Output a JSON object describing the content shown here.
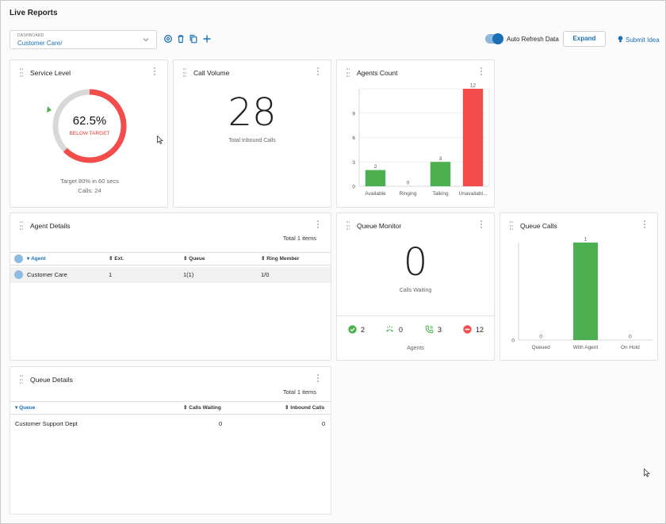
{
  "page": {
    "title": "Live Reports"
  },
  "toolbar": {
    "dashboard_label": "DASHBOARD",
    "dashboard_value": "Customer Care/",
    "icons": [
      "settings-icon",
      "trash-icon",
      "copy-icon",
      "plus-icon"
    ],
    "auto_refresh_label": "Auto Refresh Data",
    "auto_refresh_on": true,
    "expand_label": "Expand",
    "submit_idea_label": "Submit Idea"
  },
  "colors": {
    "accent": "#1a6fb5",
    "green": "#4caf50",
    "red": "#f44b4b",
    "gray": "#d8d8d8"
  },
  "service_level": {
    "title": "Service Level",
    "percent_text": "62.5%",
    "percent": 62.5,
    "status": "BELOW TARGET",
    "target_text": "Target 80% in 60 secs",
    "calls_text": "Calls: 24"
  },
  "call_volume": {
    "title": "Call Volume",
    "value": "28",
    "caption": "Total Inbound Calls"
  },
  "agents_count": {
    "title": "Agents Count",
    "chart_data": {
      "type": "bar",
      "categories": [
        "Available",
        "Ringing",
        "Talking",
        "Unavailabl..."
      ],
      "values": [
        2,
        0,
        3,
        12
      ],
      "colors": [
        "#4caf50",
        "#4caf50",
        "#4caf50",
        "#f44b4b"
      ],
      "yticks": [
        "0",
        "3",
        "6",
        "9"
      ],
      "ylim": [
        0,
        12
      ]
    }
  },
  "agent_details": {
    "title": "Agent Details",
    "total": "Total 1 items",
    "columns": [
      "Agent",
      "Ext.",
      "Queue",
      "Ring Member"
    ],
    "rows": [
      {
        "agent": "Customer Care",
        "ext": "1",
        "queue": "1(1)",
        "ring": "1/0"
      }
    ]
  },
  "queue_monitor": {
    "title": "Queue Monitor",
    "value": "0",
    "caption": "Calls Waiting",
    "stats": [
      {
        "icon": "check-circle-icon",
        "value": "2"
      },
      {
        "icon": "phone-ringing-icon",
        "value": "0"
      },
      {
        "icon": "phone-talking-icon",
        "value": "3"
      },
      {
        "icon": "unavailable-icon",
        "value": "12"
      }
    ],
    "stats_label": "Agents"
  },
  "queue_calls": {
    "title": "Queue Calls",
    "chart_data": {
      "type": "bar",
      "categories": [
        "Queued",
        "With Agent",
        "On Hold"
      ],
      "values": [
        0,
        1,
        0
      ],
      "colors": [
        "#4caf50",
        "#4caf50",
        "#4caf50"
      ],
      "yticks": [
        "0"
      ],
      "ylim": [
        0,
        1
      ]
    }
  },
  "queue_details": {
    "title": "Queue Details",
    "total": "Total 1 items",
    "columns": [
      "Queue",
      "Calls Waiting",
      "Inbound Calls"
    ],
    "rows": [
      {
        "queue": "Customer Support Dept",
        "waiting": "0",
        "inbound": "0"
      }
    ]
  }
}
